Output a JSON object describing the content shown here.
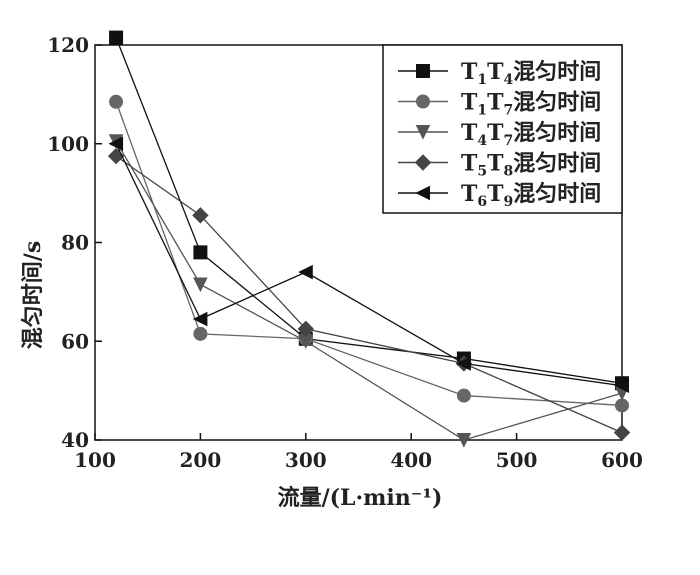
{
  "chart_data": {
    "type": "line",
    "xlabel": "流量/(L·min⁻¹)",
    "ylabel": "混匀时间/s",
    "xlim": [
      100,
      600
    ],
    "ylim": [
      40,
      120
    ],
    "xticks": [
      100,
      200,
      300,
      400,
      500,
      600
    ],
    "yticks": [
      40,
      60,
      80,
      100,
      120
    ],
    "grid": false,
    "legend_position": "top-right",
    "series": [
      {
        "name": "T1T4混匀时间",
        "legend_parts": [
          "T",
          "1",
          "T",
          "4",
          "混匀时间"
        ],
        "marker": "square",
        "color": "#111111",
        "x": [
          120,
          200,
          300,
          450,
          600
        ],
        "y": [
          121.5,
          78,
          60.5,
          56.5,
          51.5
        ]
      },
      {
        "name": "T1T7混匀时间",
        "legend_parts": [
          "T",
          "1",
          "T",
          "7",
          "混匀时间"
        ],
        "marker": "circle",
        "color": "#666666",
        "x": [
          120,
          200,
          300,
          450,
          600
        ],
        "y": [
          108.5,
          61.5,
          60.5,
          49,
          47
        ]
      },
      {
        "name": "T4T7混匀时间",
        "legend_parts": [
          "T",
          "4",
          "T",
          "7",
          "混匀时间"
        ],
        "marker": "triangle-down",
        "color": "#555555",
        "x": [
          120,
          200,
          300,
          450,
          600
        ],
        "y": [
          100.5,
          71.5,
          60,
          40,
          49.5
        ]
      },
      {
        "name": "T5T8混匀时间",
        "legend_parts": [
          "T",
          "5",
          "T",
          "8",
          "混匀时间"
        ],
        "marker": "diamond",
        "color": "#444444",
        "x": [
          120,
          200,
          300,
          450,
          600
        ],
        "y": [
          97.5,
          85.5,
          62.5,
          55.5,
          41.5
        ]
      },
      {
        "name": "T6T9混匀时间",
        "legend_parts": [
          "T",
          "6",
          "T",
          "9",
          "混匀时间"
        ],
        "marker": "triangle-left",
        "color": "#111111",
        "x": [
          120,
          200,
          300,
          450,
          600
        ],
        "y": [
          100,
          64.5,
          74,
          55.5,
          51
        ]
      }
    ]
  }
}
